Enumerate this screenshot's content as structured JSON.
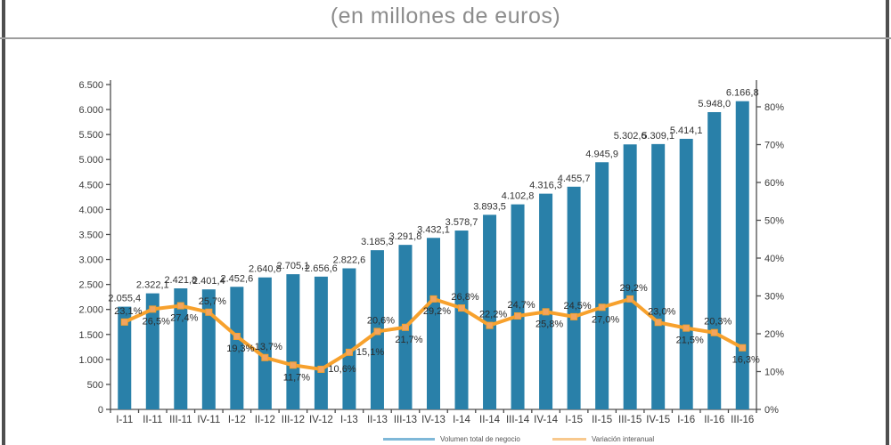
{
  "window": {
    "title": "(en millones de euros)"
  },
  "legend": [
    {
      "label": "Volumen total de negocio",
      "color": "#7fb8d8"
    },
    {
      "label": "Variación interanual",
      "color": "#f8c98e"
    }
  ],
  "colors": {
    "bar": "#2980a9",
    "line": "#f7a12d",
    "marker_fill": "#f2a45f",
    "axis": "#4d4d4d",
    "tick_text": "#3a3a3a",
    "value_text": "#333333",
    "pct_text": "#2b2b2b",
    "title_text": "#8c8c8c",
    "border": "#4f4f4f"
  },
  "chart_data": {
    "type": "bar",
    "title": "(en millones de euros)",
    "legend_position": "bottom",
    "grid": false,
    "categories": [
      "I-11",
      "II-11",
      "III-11",
      "IV-11",
      "I-12",
      "II-12",
      "III-12",
      "IV-12",
      "I-13",
      "II-13",
      "III-13",
      "IV-13",
      "I-14",
      "II-14",
      "III-14",
      "IV-14",
      "I-15",
      "II-15",
      "III-15",
      "IV-15",
      "I-16",
      "II-16",
      "III-16"
    ],
    "series": [
      {
        "name": "Volumen total de negocio",
        "type": "bar",
        "axis": "left",
        "values": [
          2055.4,
          2322.1,
          2421.8,
          2401.4,
          2452.6,
          2640.8,
          2705.1,
          2656.6,
          2822.6,
          3185.3,
          3291.8,
          3432.1,
          3578.7,
          3893.5,
          4102.8,
          4316.3,
          4455.7,
          4945.9,
          5302.6,
          5309.1,
          5414.1,
          5948.0,
          6166.8
        ],
        "value_labels": [
          "2.055,4",
          "2.322,1",
          "2.421,8",
          "2.401,4",
          "2.452,6",
          "2.640,8",
          "2.705,1",
          "2.656,6",
          "2.822,6",
          "3.185,3",
          "3.291,8",
          "3.432,1",
          "3.578,7",
          "3.893,5",
          "4.102,8",
          "4.316,3",
          "4.455,7",
          "4.945,9",
          "5.302,6",
          "5.309,1",
          "5.414,1",
          "5.948,0",
          "6.166,8"
        ]
      },
      {
        "name": "Variación interanual",
        "type": "line",
        "axis": "right",
        "values": [
          23.1,
          26.5,
          27.4,
          25.7,
          19.3,
          13.7,
          11.7,
          10.6,
          15.1,
          20.6,
          21.7,
          29.2,
          26.8,
          22.2,
          24.7,
          25.8,
          24.5,
          27.0,
          29.2,
          23.0,
          21.5,
          20.3,
          16.3
        ],
        "value_labels": [
          "23,1%",
          "26,5%",
          "27,4%",
          "25,7%",
          "19,3%",
          "13,7%",
          "11,7%",
          "10,6%",
          "15,1%",
          "20,6%",
          "21,7%",
          "29,2%",
          "26,8%",
          "22,2%",
          "24,7%",
          "25,8%",
          "24,5%",
          "27,0%",
          "29,2%",
          "23,0%",
          "21,5%",
          "20,3%",
          "16,3%"
        ],
        "label_side": [
          "above",
          "below",
          "below",
          "above",
          "below",
          "above",
          "below",
          "right",
          "right",
          "above",
          "below",
          "below",
          "above",
          "above",
          "above",
          "below",
          "above",
          "below",
          "above",
          "above",
          "below",
          "above",
          "below"
        ]
      }
    ],
    "left_axis": {
      "min": 0,
      "max": 6500,
      "step": 500,
      "tick_labels": [
        "0",
        "500",
        "1.000",
        "1.500",
        "2.000",
        "2.500",
        "3.000",
        "3.500",
        "4.000",
        "4.500",
        "5.000",
        "5.500",
        "6.000",
        "6.500"
      ]
    },
    "right_axis": {
      "min": 0,
      "max": 80,
      "step": 10,
      "tick_labels": [
        "0%",
        "10%",
        "20%",
        "30%",
        "40%",
        "50%",
        "60%",
        "70%",
        "80%"
      ]
    }
  }
}
